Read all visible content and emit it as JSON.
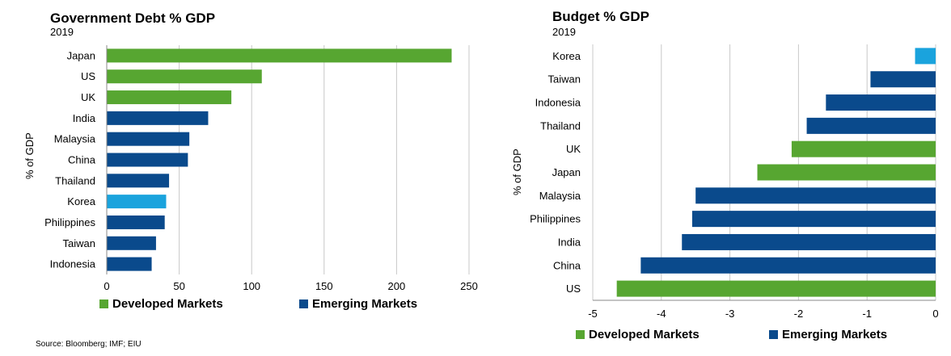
{
  "colors": {
    "developed": "#57a631",
    "emerging": "#0a4a8c",
    "highlight": "#1aa3dd",
    "grid": "#c8c8c8"
  },
  "source": "Source: Bloomberg; IMF; EIU",
  "chart_data": [
    {
      "type": "bar",
      "orientation": "horizontal",
      "title": "Government Debt % GDP",
      "subtitle": "2019",
      "ylabel": "% of GDP",
      "xlim": [
        0,
        250
      ],
      "xticks": [
        "0",
        "50",
        "100",
        "150",
        "200",
        "250"
      ],
      "grid": true,
      "categories": [
        "Japan",
        "US",
        "UK",
        "India",
        "Malaysia",
        "China",
        "Thailand",
        "Korea",
        "Philippines",
        "Taiwan",
        "Indonesia"
      ],
      "values": [
        238,
        107,
        86,
        70,
        57,
        56,
        43,
        41,
        40,
        34,
        31
      ],
      "groups": [
        "developed",
        "developed",
        "developed",
        "emerging",
        "emerging",
        "emerging",
        "emerging",
        "highlight",
        "emerging",
        "emerging",
        "emerging"
      ],
      "legend": [
        {
          "label": "Developed Markets",
          "color": "developed"
        },
        {
          "label": "Emerging Markets",
          "color": "emerging"
        }
      ]
    },
    {
      "type": "bar",
      "orientation": "horizontal",
      "title": "Budget % GDP",
      "subtitle": "2019",
      "ylabel": "% of GDP",
      "xlim": [
        -5,
        0
      ],
      "xticks": [
        "-5",
        "-4",
        "-3",
        "-2",
        "-1",
        "0"
      ],
      "grid": true,
      "categories": [
        "Korea",
        "Taiwan",
        "Indonesia",
        "Thailand",
        "UK",
        "Japan",
        "Malaysia",
        "Philippines",
        "India",
        "China",
        "US"
      ],
      "values": [
        -0.3,
        -0.95,
        -1.6,
        -1.88,
        -2.1,
        -2.6,
        -3.5,
        -3.55,
        -3.7,
        -4.3,
        -4.65
      ],
      "groups": [
        "highlight",
        "emerging",
        "emerging",
        "emerging",
        "developed",
        "developed",
        "emerging",
        "emerging",
        "emerging",
        "emerging",
        "developed"
      ],
      "legend": [
        {
          "label": "Developed Markets",
          "color": "developed"
        },
        {
          "label": "Emerging Markets",
          "color": "emerging"
        }
      ]
    }
  ]
}
